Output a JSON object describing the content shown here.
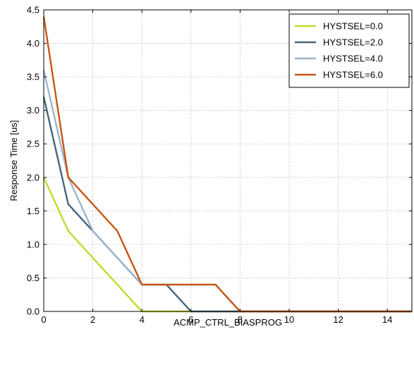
{
  "chart_data": {
    "type": "line",
    "title": "",
    "xlabel": "ACMP_CTRL_BIASPROG",
    "ylabel": "Response Time [us]",
    "xlim": [
      0,
      15
    ],
    "ylim": [
      0,
      4.5
    ],
    "xticks": [
      0,
      2,
      4,
      6,
      8,
      10,
      12,
      14
    ],
    "yticks": [
      0.0,
      0.5,
      1.0,
      1.5,
      2.0,
      2.5,
      3.0,
      3.5,
      4.0,
      4.5
    ],
    "xtick_labels": [
      "0",
      "2",
      "4",
      "6",
      "8",
      "10",
      "12",
      "14"
    ],
    "ytick_labels": [
      "0.0",
      "0.5",
      "1.0",
      "1.5",
      "2.0",
      "2.5",
      "3.0",
      "3.5",
      "4.0",
      "4.5"
    ],
    "grid": true,
    "legend_position": "top-right",
    "x": [
      0,
      1,
      2,
      3,
      4,
      5,
      6,
      7,
      8,
      9,
      10,
      11,
      12,
      13,
      14,
      15
    ],
    "series": [
      {
        "name": "HYSTSEL=0.0",
        "color": "#c5d92b",
        "values": [
          2.0,
          1.2,
          0.8,
          0.4,
          0.0,
          0.0,
          0.0,
          0.0,
          0.0,
          0.0,
          0.0,
          0.0,
          0.0,
          0.0,
          0.0,
          0.0
        ]
      },
      {
        "name": "HYSTSEL=2.0",
        "color": "#476677",
        "values": [
          3.2,
          1.6,
          1.2,
          0.8,
          0.4,
          0.4,
          0.0,
          0.0,
          0.0,
          0.0,
          0.0,
          0.0,
          0.0,
          0.0,
          0.0,
          0.0
        ]
      },
      {
        "name": "HYSTSEL=4.0",
        "color": "#9db4cc",
        "values": [
          3.6,
          2.0,
          1.2,
          0.8,
          0.4,
          0.4,
          0.4,
          0.4,
          0.0,
          0.0,
          0.0,
          0.0,
          0.0,
          0.0,
          0.0,
          0.0
        ]
      },
      {
        "name": "HYSTSEL=6.0",
        "color": "#c75513",
        "values": [
          4.4,
          2.0,
          1.6,
          1.2,
          0.4,
          0.4,
          0.4,
          0.4,
          0.0,
          0.0,
          0.0,
          0.0,
          0.0,
          0.0,
          0.0,
          0.0
        ]
      }
    ]
  }
}
